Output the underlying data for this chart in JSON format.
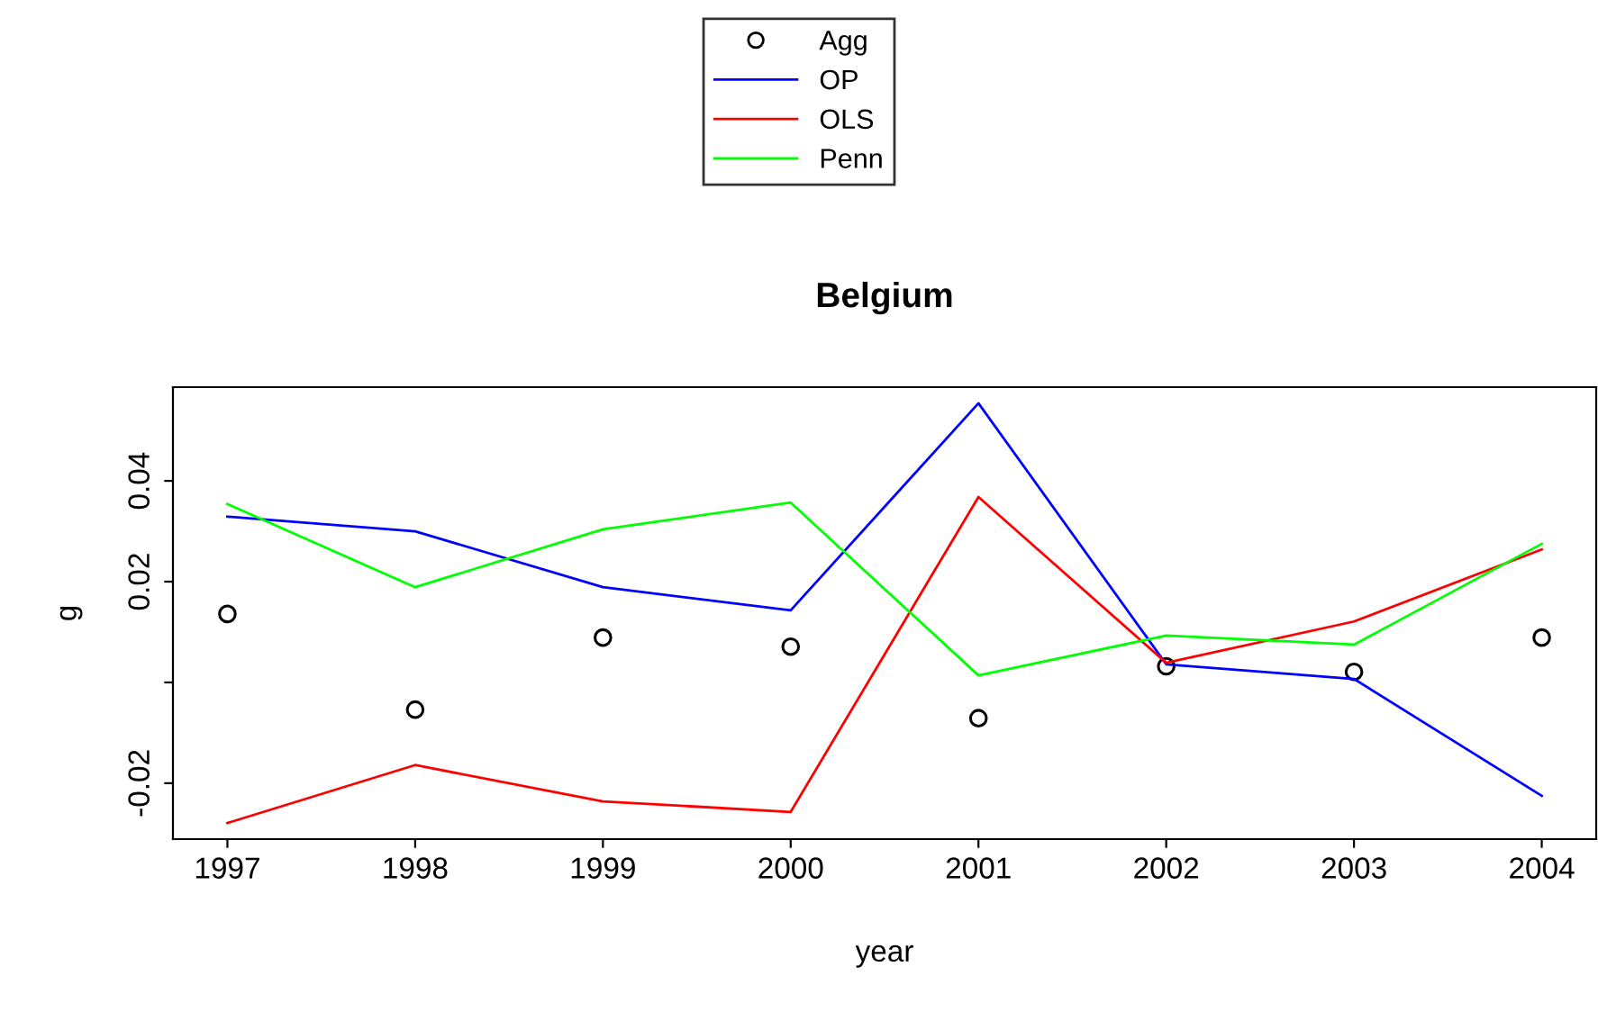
{
  "chart_data": {
    "type": "line",
    "title": "Belgium",
    "xlabel": "year",
    "ylabel": "g",
    "x": [
      1997,
      1998,
      1999,
      2000,
      2001,
      2002,
      2003,
      2004
    ],
    "series": [
      {
        "name": "Agg",
        "type": "scatter",
        "color": "#000000",
        "marker": "circle",
        "values": [
          0.0136,
          -0.0054,
          0.0089,
          0.0071,
          -0.0071,
          0.0032,
          0.0021,
          0.0089
        ]
      },
      {
        "name": "OP",
        "color": "#0000ff",
        "values": [
          0.0329,
          0.03,
          0.0189,
          0.0143,
          0.0554,
          0.0036,
          0.0007,
          -0.0225
        ]
      },
      {
        "name": "OLS",
        "color": "#ff0000",
        "values": [
          -0.0279,
          -0.0164,
          -0.0236,
          -0.0257,
          0.0368,
          0.0039,
          0.0121,
          0.0264
        ]
      },
      {
        "name": "Penn",
        "color": "#00ff00",
        "values": [
          0.0354,
          0.0189,
          0.0304,
          0.0357,
          0.0014,
          0.0093,
          0.0075,
          0.0275
        ]
      }
    ],
    "xlim": [
      1996.71,
      2004.29
    ],
    "ylim": [
      -0.0311,
      0.0586
    ],
    "xticks": [
      1997,
      1998,
      1999,
      2000,
      2001,
      2002,
      2003,
      2004
    ],
    "yticks": [
      -0.02,
      {
        "value": 0,
        "label": null
      },
      0.02,
      0.04
    ],
    "grid": false,
    "legend": "top",
    "line_style": "solid"
  }
}
